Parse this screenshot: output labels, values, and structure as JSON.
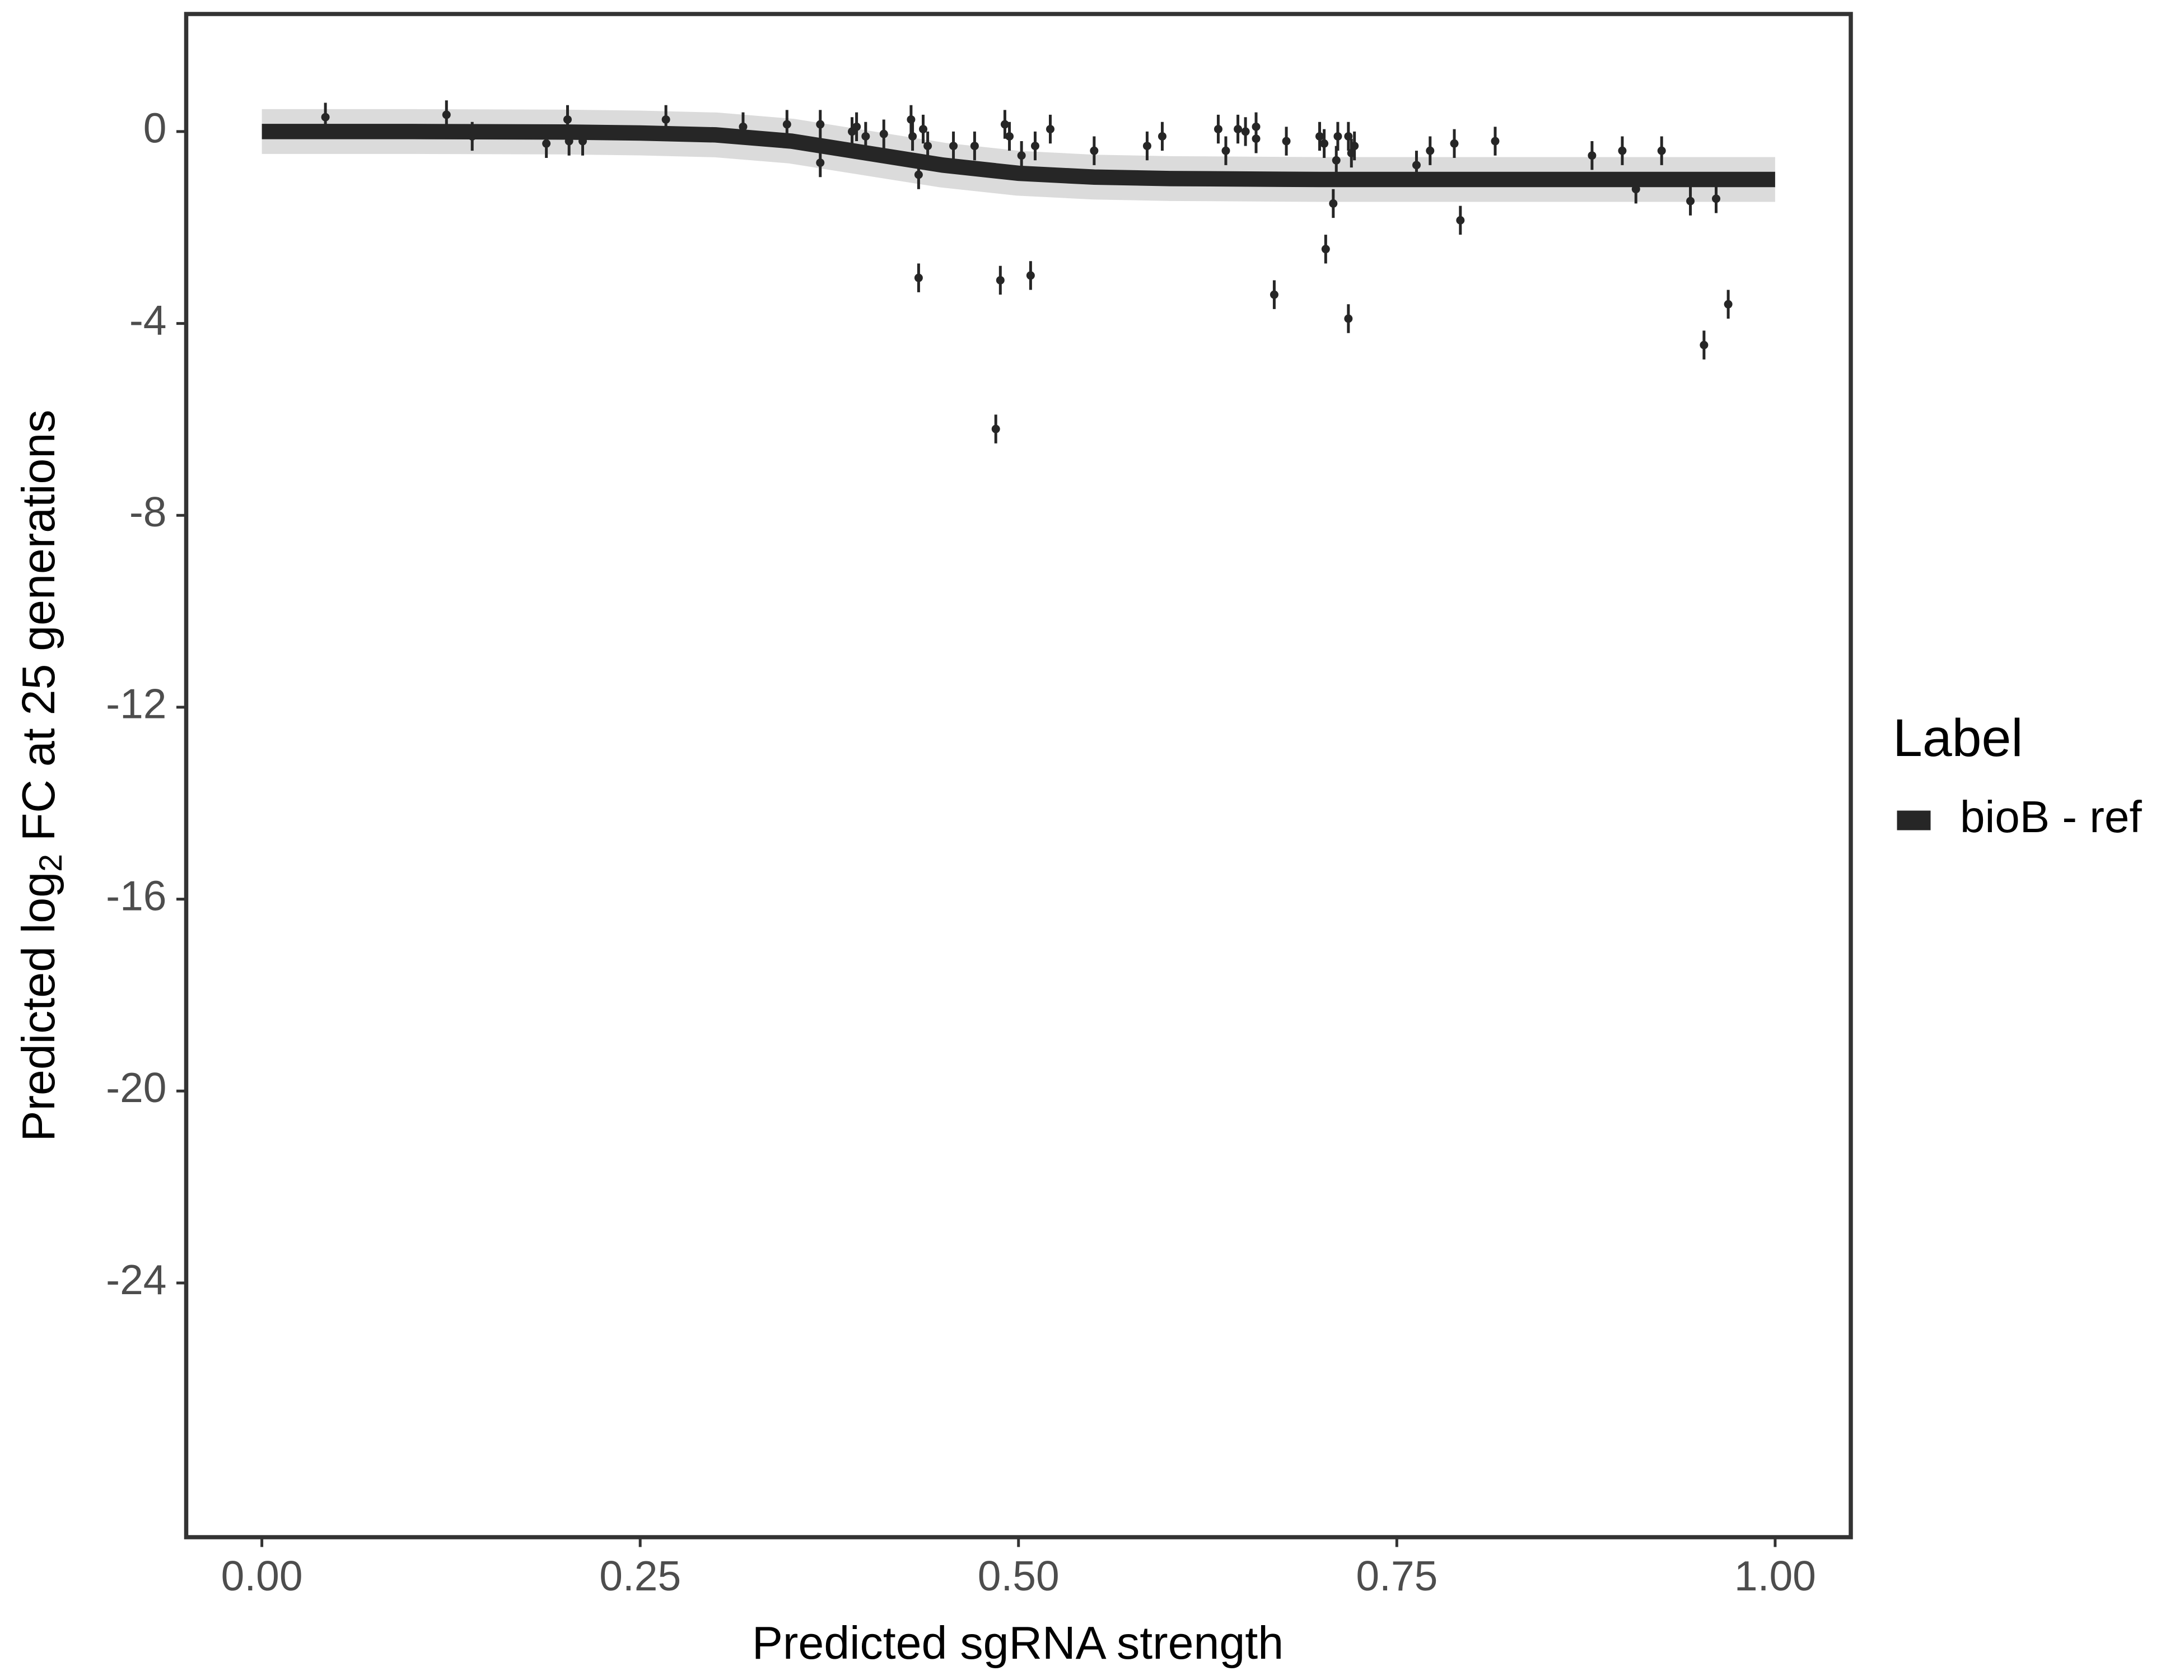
{
  "chart_data": {
    "type": "scatter",
    "xlabel": "Predicted sgRNA strength",
    "ylabel": {
      "before": "Predicted  log",
      "sub": "2",
      "after": " FC at 25 generations"
    },
    "legend_title": "Label",
    "legend": "right",
    "grid": false,
    "xlim": [
      -0.05,
      1.05
    ],
    "ylim": [
      -29.3,
      2.45
    ],
    "xticks": [
      {
        "value": 0,
        "label": "0.00"
      },
      {
        "value": 0.25,
        "label": "0.25"
      },
      {
        "value": 0.5,
        "label": "0.50"
      },
      {
        "value": 0.75,
        "label": "0.75"
      },
      {
        "value": 1,
        "label": "1.00"
      }
    ],
    "yticks": [
      0,
      -4,
      -8,
      -12,
      -16,
      -20,
      -24
    ],
    "series": [
      {
        "name": "bioB - ref",
        "type": "line",
        "color": "#262626",
        "x": [
          0,
          0.1,
          0.2,
          0.25,
          0.3,
          0.35,
          0.4,
          0.45,
          0.5,
          0.55,
          0.6,
          0.7,
          0.8,
          0.9,
          1.0
        ],
        "values": [
          0,
          0,
          -0.01,
          -0.03,
          -0.07,
          -0.2,
          -0.45,
          -0.7,
          -0.87,
          -0.95,
          -0.98,
          -1.0,
          -1.0,
          -1.0,
          -1.0
        ]
      },
      {
        "type": "points",
        "color": "#262626",
        "x": [
          0.042,
          0.122,
          0.139,
          0.188,
          0.202,
          0.203,
          0.212,
          0.267,
          0.318,
          0.347,
          0.369,
          0.369,
          0.39,
          0.393,
          0.399,
          0.411,
          0.429,
          0.43,
          0.434,
          0.434,
          0.437,
          0.44,
          0.457,
          0.471,
          0.485,
          0.488,
          0.491,
          0.494,
          0.502,
          0.508,
          0.511,
          0.521,
          0.55,
          0.585,
          0.595,
          0.632,
          0.637,
          0.645,
          0.65,
          0.657,
          0.657,
          0.669,
          0.677,
          0.699,
          0.702,
          0.703,
          0.708,
          0.71,
          0.711,
          0.718,
          0.718,
          0.72,
          0.722,
          0.763,
          0.772,
          0.788,
          0.792,
          0.815,
          0.879,
          0.899,
          0.908,
          0.925,
          0.944,
          0.953,
          0.961,
          0.969
        ],
        "values": [
          0.3,
          0.35,
          -0.1,
          -0.25,
          0.25,
          -0.2,
          -0.2,
          0.25,
          0.1,
          0.15,
          0.15,
          -0.65,
          0,
          0.1,
          -0.1,
          -0.05,
          0.25,
          -0.1,
          -0.9,
          -3.05,
          0.05,
          -0.3,
          -0.3,
          -0.3,
          -6.2,
          -3.1,
          0.15,
          -0.1,
          -0.5,
          -3.0,
          -0.3,
          0.05,
          -0.4,
          -0.3,
          -0.1,
          0.05,
          -0.4,
          0.05,
          0,
          0.1,
          -0.15,
          -3.4,
          -0.2,
          -0.1,
          -0.25,
          -2.45,
          -1.5,
          -0.6,
          -0.1,
          -0.1,
          -3.9,
          -0.45,
          -0.3,
          -0.7,
          -0.4,
          -0.25,
          -1.85,
          -0.2,
          -0.5,
          -0.4,
          -1.2,
          -0.4,
          -1.45,
          -4.45,
          -1.4,
          -3.6
        ],
        "errors": [
          0.3,
          0.3,
          0.3,
          0.3,
          0.3,
          0.3,
          0.3,
          0.3,
          0.3,
          0.3,
          0.3,
          0.3,
          0.3,
          0.3,
          0.3,
          0.3,
          0.3,
          0.3,
          0.3,
          0.3,
          0.3,
          0.3,
          0.3,
          0.3,
          0.3,
          0.3,
          0.3,
          0.3,
          0.3,
          0.3,
          0.3,
          0.3,
          0.3,
          0.3,
          0.3,
          0.3,
          0.3,
          0.3,
          0.3,
          0.3,
          0.3,
          0.3,
          0.3,
          0.3,
          0.3,
          0.3,
          0.3,
          0.3,
          0.3,
          0.3,
          0.3,
          0.3,
          0.3,
          0.3,
          0.3,
          0.3,
          0.3,
          0.3,
          0.3,
          0.3,
          0.3,
          0.3,
          0.3,
          0.3,
          0.3,
          0.3
        ]
      }
    ]
  }
}
